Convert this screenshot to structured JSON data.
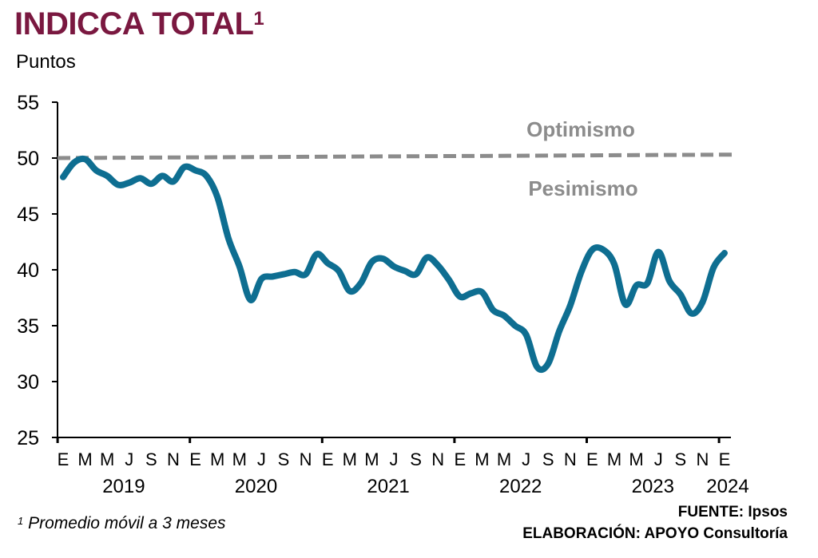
{
  "colors": {
    "title": "#7a1840",
    "line": "#0e6e91",
    "reference": "#8c8c8c",
    "axis": "#000000"
  },
  "header": {
    "title": "INDICCA TOTAL",
    "title_sup": "1"
  },
  "chart_data": {
    "type": "line",
    "title": "INDICCA TOTAL",
    "ylabel": "Puntos",
    "ylim": [
      25,
      55
    ],
    "yticks": [
      25,
      30,
      35,
      40,
      45,
      50,
      55
    ],
    "month_labels": [
      "E",
      "M",
      "M",
      "J",
      "S",
      "N",
      "E",
      "M",
      "M",
      "J",
      "S",
      "N",
      "E",
      "M",
      "M",
      "J",
      "S",
      "N",
      "E",
      "M",
      "M",
      "J",
      "S",
      "N",
      "E",
      "M",
      "M",
      "J",
      "S",
      "N",
      "E"
    ],
    "year_labels": [
      "2019",
      "2020",
      "2021",
      "2022",
      "2023",
      "2024"
    ],
    "x": [
      "2019-01",
      "2019-02",
      "2019-03",
      "2019-04",
      "2019-05",
      "2019-06",
      "2019-07",
      "2019-08",
      "2019-09",
      "2019-10",
      "2019-11",
      "2019-12",
      "2020-01",
      "2020-02",
      "2020-03",
      "2020-04",
      "2020-05",
      "2020-06",
      "2020-07",
      "2020-08",
      "2020-09",
      "2020-10",
      "2020-11",
      "2020-12",
      "2021-01",
      "2021-02",
      "2021-03",
      "2021-04",
      "2021-05",
      "2021-06",
      "2021-07",
      "2021-08",
      "2021-09",
      "2021-10",
      "2021-11",
      "2021-12",
      "2022-01",
      "2022-02",
      "2022-03",
      "2022-04",
      "2022-05",
      "2022-06",
      "2022-07",
      "2022-08",
      "2022-09",
      "2022-10",
      "2022-11",
      "2022-12",
      "2023-01",
      "2023-02",
      "2023-03",
      "2023-04",
      "2023-05",
      "2023-06",
      "2023-07",
      "2023-08",
      "2023-09",
      "2023-10",
      "2023-11",
      "2023-12",
      "2024-01"
    ],
    "series": [
      {
        "values": [
          48.3,
          49.6,
          49.9,
          48.9,
          48.4,
          47.6,
          47.8,
          48.2,
          47.7,
          48.4,
          47.9,
          49.2,
          48.9,
          48.4,
          46.5,
          42.8,
          40.3,
          37.3,
          39.2,
          39.4,
          39.6,
          39.8,
          39.6,
          41.4,
          40.6,
          39.9,
          38.1,
          38.8,
          40.7,
          41.0,
          40.3,
          39.9,
          39.6,
          41.1,
          40.4,
          39.1,
          37.6,
          37.9,
          38.0,
          36.4,
          35.9,
          35.0,
          34.2,
          31.3,
          31.6,
          34.5,
          36.8,
          39.8,
          41.8,
          41.8,
          40.5,
          36.9,
          38.6,
          38.8,
          41.6,
          39.0,
          37.8,
          36.1,
          37.1,
          40.2,
          41.5
        ]
      }
    ],
    "reference_line": {
      "value": 50.2
    },
    "annotations": [
      "Optimismo",
      "Pesimismo"
    ],
    "grid": false,
    "legend": "none"
  },
  "footnote": {
    "sup": "1",
    "text": "Promedio móvil a 3 meses"
  },
  "source": {
    "line1": "FUENTE: Ipsos",
    "line2": "ELABORACIÓN: APOYO Consultoría"
  }
}
